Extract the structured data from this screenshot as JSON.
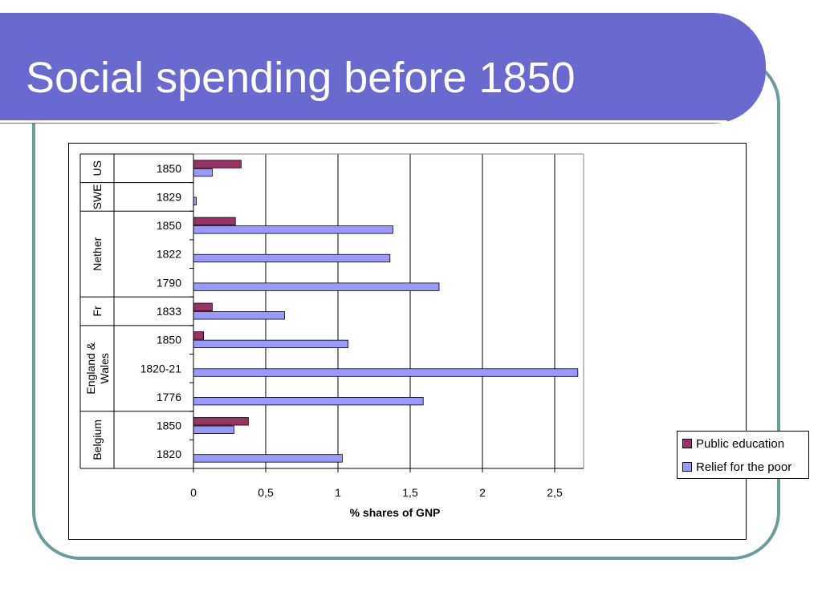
{
  "slide": {
    "title": "Social spending before 1850"
  },
  "colors": {
    "banner": "#6a69cf",
    "frame": "#6a9c9a",
    "public_education": "#993366",
    "relief_for_the_poor": "#9999ff"
  },
  "chart_data": {
    "type": "bar",
    "orientation": "horizontal",
    "title": "",
    "xlabel": "% shares of GNP",
    "ylabel": "",
    "xlim": [
      0,
      2.7
    ],
    "x_ticks": [
      0,
      0.5,
      1,
      1.5,
      2,
      2.5
    ],
    "x_tick_labels": [
      "0",
      "0,5",
      "1",
      "1,5",
      "2",
      "2,5"
    ],
    "grid": "vertical",
    "legend_position": "right",
    "groups": [
      "US",
      "SWE",
      "Nether",
      "Fr",
      "England & Wales",
      "Belgium"
    ],
    "categories": [
      {
        "group": "US",
        "label": "1850"
      },
      {
        "group": "SWE",
        "label": "1829"
      },
      {
        "group": "Nether",
        "label": "1850"
      },
      {
        "group": "Nether",
        "label": "1822"
      },
      {
        "group": "Nether",
        "label": "1790"
      },
      {
        "group": "Fr",
        "label": "1833"
      },
      {
        "group": "England & Wales",
        "label": "1850"
      },
      {
        "group": "England & Wales",
        "label": "1820-21"
      },
      {
        "group": "England & Wales",
        "label": "1776"
      },
      {
        "group": "Belgium",
        "label": "1850"
      },
      {
        "group": "Belgium",
        "label": "1820"
      }
    ],
    "series": [
      {
        "name": "Public education",
        "values": [
          0.33,
          null,
          0.29,
          null,
          null,
          0.13,
          0.07,
          null,
          null,
          0.38,
          null
        ]
      },
      {
        "name": "Relief for the poor",
        "values": [
          0.13,
          0.02,
          1.38,
          1.36,
          1.7,
          0.63,
          1.07,
          2.66,
          1.59,
          0.28,
          1.03
        ]
      }
    ]
  }
}
